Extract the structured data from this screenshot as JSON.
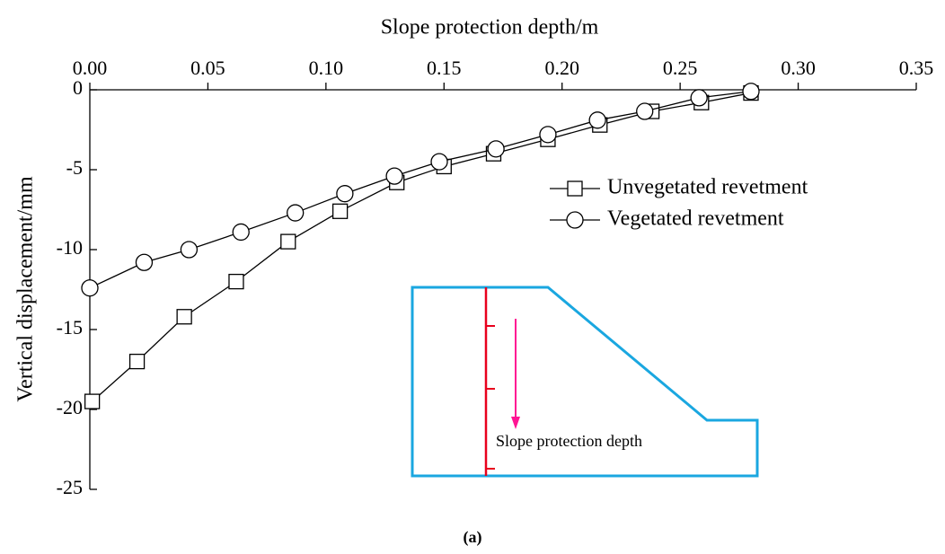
{
  "chart_data": {
    "type": "line",
    "x_label": "Slope protection depth/m",
    "y_label": "Vertical displacement/mm",
    "caption": "(a)",
    "inset_label": "Slope protection depth",
    "xlim": [
      0,
      0.35
    ],
    "xticks": [
      {
        "value": 0,
        "label": "0.00"
      },
      {
        "value": 0.05,
        "label": "0.05"
      },
      {
        "value": 0.1,
        "label": "0.10"
      },
      {
        "value": 0.15,
        "label": "0.15"
      },
      {
        "value": 0.2,
        "label": "0.20"
      },
      {
        "value": 0.25,
        "label": "0.25"
      },
      {
        "value": 0.3,
        "label": "0.30"
      },
      {
        "value": 0.35,
        "label": "0.35"
      }
    ],
    "ylim": [
      -25,
      0
    ],
    "yticks": [
      0,
      -5,
      -10,
      -15,
      -20,
      -25
    ],
    "series": [
      {
        "name": "Unvegetated revetment",
        "color": "#000000",
        "marker": "square",
        "x": [
          0.001,
          0.02,
          0.04,
          0.062,
          0.084,
          0.106,
          0.13,
          0.15,
          0.171,
          0.194,
          0.216,
          0.238,
          0.259,
          0.28
        ],
        "values": [
          -19.5,
          -17.0,
          -14.2,
          -12.0,
          -9.5,
          -7.6,
          -5.8,
          -4.8,
          -4.0,
          -3.1,
          -2.2,
          -1.35,
          -0.8,
          -0.2
        ]
      },
      {
        "name": "Vegetated revetment",
        "color": "#000000",
        "marker": "circle",
        "x": [
          0.0,
          0.023,
          0.042,
          0.064,
          0.087,
          0.108,
          0.129,
          0.148,
          0.172,
          0.194,
          0.215,
          0.235,
          0.258,
          0.28
        ],
        "values": [
          -12.4,
          -10.8,
          -10.0,
          -8.9,
          -7.7,
          -6.5,
          -5.4,
          -4.5,
          -3.7,
          -2.8,
          -1.9,
          -1.35,
          -0.5,
          -0.1
        ]
      }
    ]
  }
}
